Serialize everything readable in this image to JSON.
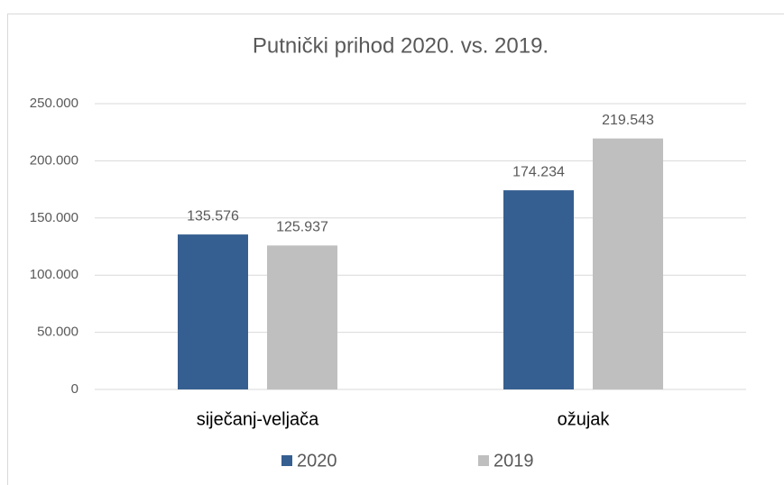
{
  "chart_data": {
    "type": "bar",
    "title": "Putnički prihod 2020. vs. 2019.",
    "categories": [
      "siječanj-veljača",
      "ožujak"
    ],
    "series": [
      {
        "name": "2020",
        "color": "#365f91",
        "values": [
          135576,
          174234
        ],
        "value_labels": [
          "135.576",
          "174.234"
        ]
      },
      {
        "name": "2019",
        "color": "#bfbfbf",
        "values": [
          125937,
          219543
        ],
        "value_labels": [
          "125.937",
          "219.543"
        ]
      }
    ],
    "ylim": [
      0,
      250000
    ],
    "yticks": [
      0,
      {
        "value": 50000,
        "label": "50.000"
      },
      {
        "value": 100000,
        "label": "100.000"
      },
      {
        "value": 150000,
        "label": "150.000"
      },
      {
        "value": 200000,
        "label": "200.000"
      },
      {
        "value": 250000,
        "label": "250.000"
      }
    ],
    "grid": true,
    "legend": "bottom"
  }
}
